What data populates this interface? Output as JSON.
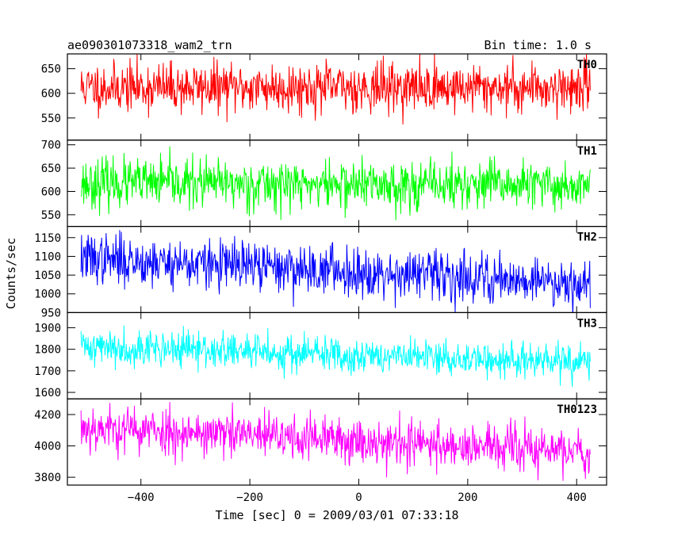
{
  "header": {
    "left_title": "ae090301073318_wam2_trn",
    "right_title": "Bin time: 1.0 s"
  },
  "chart_data": {
    "type": "line",
    "xlabel": "Time [sec] 0 = 2009/03/01 07:33:18",
    "ylabel": "Counts/sec",
    "x_range": [
      -510,
      425
    ],
    "xlim": [
      -535,
      455
    ],
    "x_ticks": [
      -400,
      -200,
      0,
      200,
      400
    ],
    "bin_time_s": 1.0,
    "panels": [
      {
        "label": "TH0",
        "color": "#ff0000",
        "ylim": [
          505,
          680
        ],
        "y_ticks": [
          550,
          600,
          650
        ],
        "mean_start": 612,
        "mean_end": 612,
        "noise_sd": 25,
        "seed": 11
      },
      {
        "label": "TH1",
        "color": "#00ff00",
        "ylim": [
          525,
          710
        ],
        "y_ticks": [
          550,
          600,
          650,
          700
        ],
        "mean_start": 618,
        "mean_end": 612,
        "noise_sd": 26,
        "seed": 23
      },
      {
        "label": "TH2",
        "color": "#0000ff",
        "ylim": [
          950,
          1180
        ],
        "y_ticks": [
          950,
          1000,
          1050,
          1100,
          1150
        ],
        "mean_start": 1095,
        "mean_end": 1030,
        "noise_sd": 33,
        "seed": 37
      },
      {
        "label": "TH3",
        "color": "#00ffff",
        "ylim": [
          1570,
          1970
        ],
        "y_ticks": [
          1600,
          1700,
          1800,
          1900
        ],
        "mean_start": 1815,
        "mean_end": 1735,
        "noise_sd": 42,
        "seed": 41
      },
      {
        "label": "TH0123",
        "color": "#ff00ff",
        "ylim": [
          3750,
          4300
        ],
        "y_ticks": [
          3800,
          4000,
          4200
        ],
        "mean_start": 4120,
        "mean_end": 3960,
        "noise_sd": 75,
        "seed": 53
      }
    ]
  }
}
